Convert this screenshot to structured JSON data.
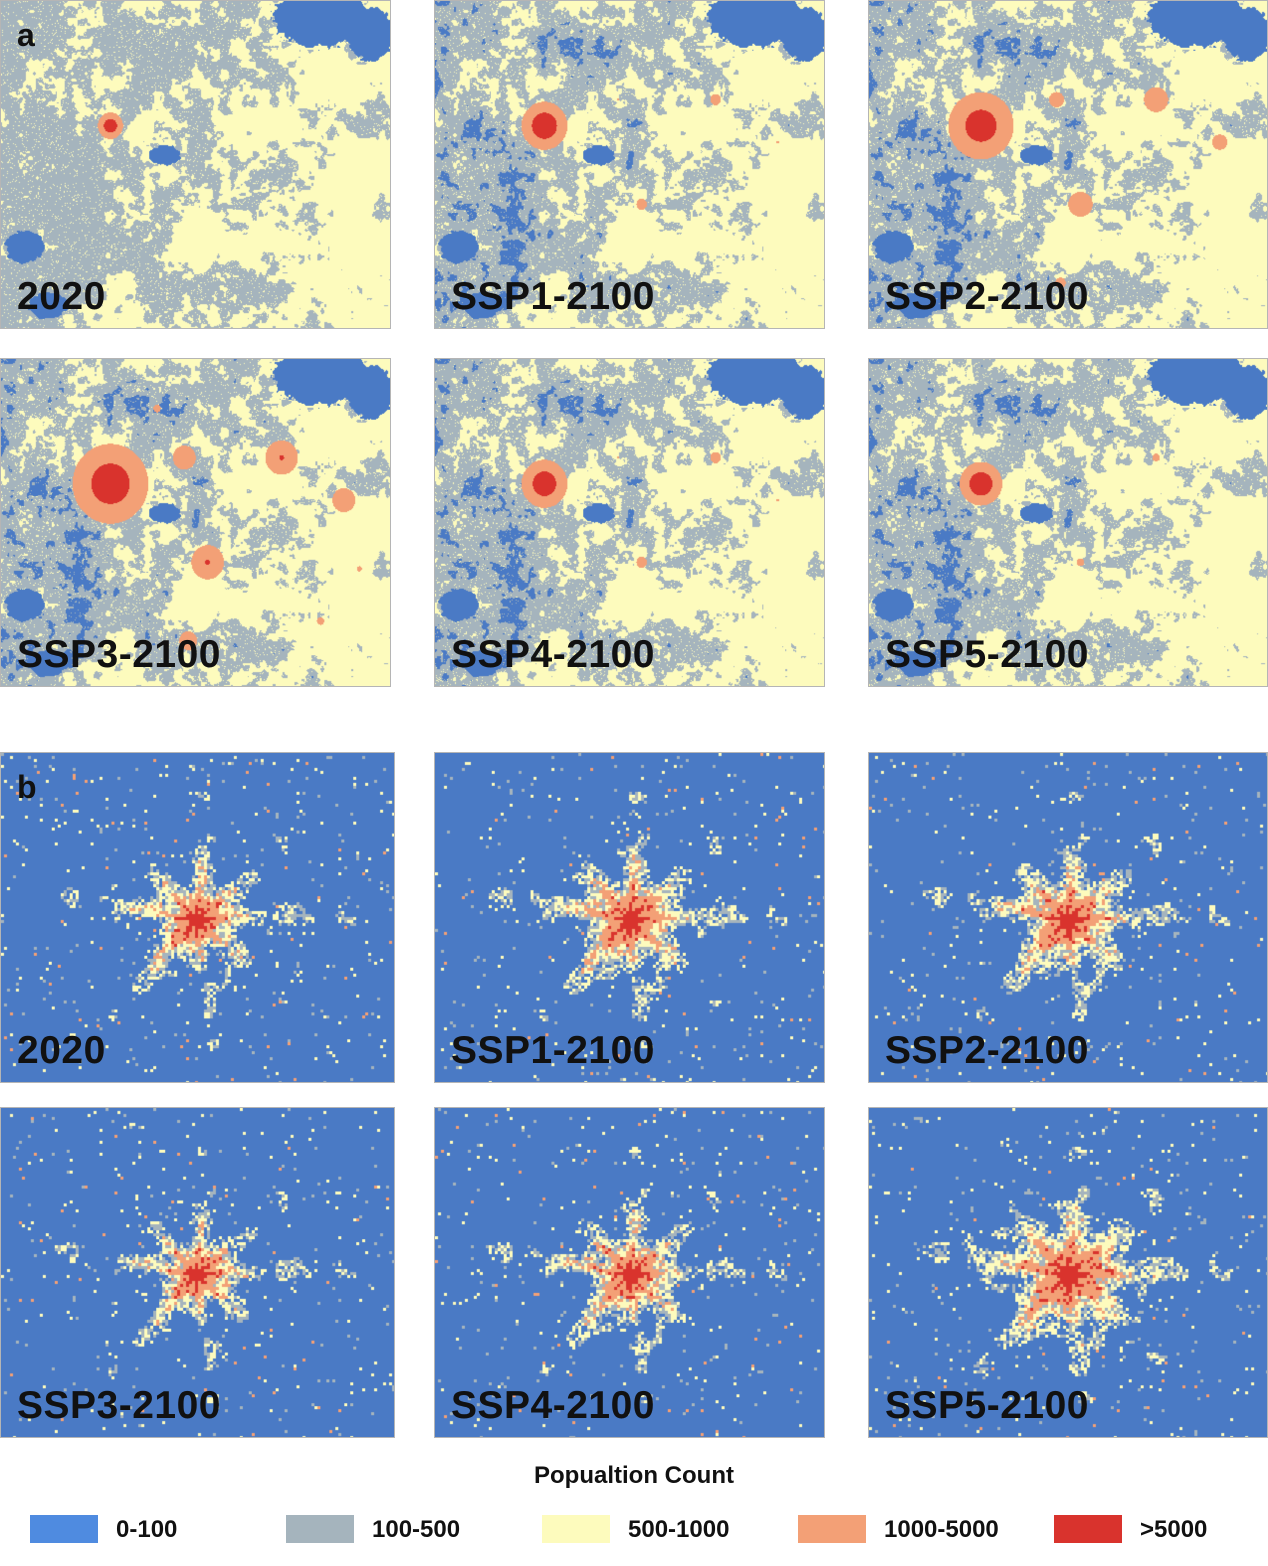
{
  "sections": [
    {
      "letter": "a",
      "panels": [
        {
          "label": "2020"
        },
        {
          "label": "SSP1-2100"
        },
        {
          "label": "SSP2-2100"
        },
        {
          "label": "SSP3-2100"
        },
        {
          "label": "SSP4-2100"
        },
        {
          "label": "SSP5-2100"
        }
      ]
    },
    {
      "letter": "b",
      "panels": [
        {
          "label": "2020"
        },
        {
          "label": "SSP1-2100"
        },
        {
          "label": "SSP2-2100"
        },
        {
          "label": "SSP3-2100"
        },
        {
          "label": "SSP4-2100"
        },
        {
          "label": "SSP5-2100"
        }
      ]
    }
  ],
  "legend": {
    "title": "Popualtion Count",
    "items": [
      {
        "label": "0-100",
        "color": "#4f8be0"
      },
      {
        "label": "100-500",
        "color": "#a5b4bd"
      },
      {
        "label": "500-1000",
        "color": "#fdfbbd"
      },
      {
        "label": "1000-5000",
        "color": "#f3a076"
      },
      {
        "label": ">5000",
        "color": "#d9332d"
      }
    ]
  },
  "map_colors": {
    "class0": "#4a7ac5",
    "class1": "#a5b4bd",
    "class2": "#fdfbbd",
    "class3": "#f3a076",
    "class4": "#d9332d"
  }
}
